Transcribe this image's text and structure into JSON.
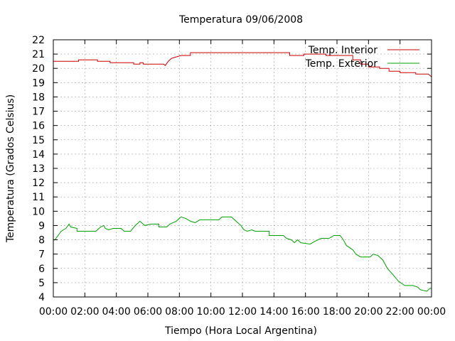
{
  "chart_data": {
    "type": "line",
    "title": "Temperatura 09/06/2008",
    "xlabel": "Tiempo (Hora Local Argentina)",
    "ylabel": "Temperatura (Grados Celsius)",
    "x_unit": "hours",
    "xlim": [
      0,
      24
    ],
    "ylim": [
      4,
      22
    ],
    "grid": true,
    "legend": "top-right",
    "x_ticks": [
      {
        "value": 0,
        "label": "00:00"
      },
      {
        "value": 2,
        "label": "02:00"
      },
      {
        "value": 4,
        "label": "04:00"
      },
      {
        "value": 6,
        "label": "06:00"
      },
      {
        "value": 8,
        "label": "08:00"
      },
      {
        "value": 10,
        "label": "10:00"
      },
      {
        "value": 12,
        "label": "12:00"
      },
      {
        "value": 14,
        "label": "14:00"
      },
      {
        "value": 16,
        "label": "16:00"
      },
      {
        "value": 18,
        "label": "18:00"
      },
      {
        "value": 20,
        "label": "20:00"
      },
      {
        "value": 22,
        "label": "22:00"
      },
      {
        "value": 24,
        "label": "00:00"
      }
    ],
    "y_ticks": [
      {
        "value": 4,
        "label": "4"
      },
      {
        "value": 5,
        "label": "5"
      },
      {
        "value": 6,
        "label": "6"
      },
      {
        "value": 7,
        "label": "7"
      },
      {
        "value": 8,
        "label": "8"
      },
      {
        "value": 9,
        "label": "9"
      },
      {
        "value": 10,
        "label": "10"
      },
      {
        "value": 11,
        "label": "11"
      },
      {
        "value": 12,
        "label": "12"
      },
      {
        "value": 13,
        "label": "13"
      },
      {
        "value": 14,
        "label": "14"
      },
      {
        "value": 15,
        "label": "15"
      },
      {
        "value": 16,
        "label": "16"
      },
      {
        "value": 17,
        "label": "17"
      },
      {
        "value": 18,
        "label": "18"
      },
      {
        "value": 19,
        "label": "19"
      },
      {
        "value": 20,
        "label": "20"
      },
      {
        "value": 21,
        "label": "21"
      },
      {
        "value": 22,
        "label": "22"
      }
    ],
    "series": [
      {
        "name": "Temp. Interior",
        "color": "#cc0000",
        "points": [
          [
            0,
            20.5
          ],
          [
            1.6,
            20.5
          ],
          [
            1.6,
            20.6
          ],
          [
            2.8,
            20.6
          ],
          [
            2.8,
            20.5
          ],
          [
            3.6,
            20.5
          ],
          [
            3.6,
            20.4
          ],
          [
            5.1,
            20.4
          ],
          [
            5.1,
            20.3
          ],
          [
            5.5,
            20.3
          ],
          [
            5.5,
            20.4
          ],
          [
            5.7,
            20.4
          ],
          [
            5.7,
            20.3
          ],
          [
            7.0,
            20.3
          ],
          [
            7.1,
            20.2
          ],
          [
            7.3,
            20.5
          ],
          [
            7.5,
            20.7
          ],
          [
            7.8,
            20.8
          ],
          [
            8.1,
            20.9
          ],
          [
            8.7,
            20.9
          ],
          [
            8.7,
            21.1
          ],
          [
            15.0,
            21.1
          ],
          [
            15.0,
            20.9
          ],
          [
            15.9,
            20.9
          ],
          [
            15.9,
            21.0
          ],
          [
            17.3,
            21.0
          ],
          [
            17.3,
            20.9
          ],
          [
            19.0,
            20.9
          ],
          [
            19.0,
            20.6
          ],
          [
            19.5,
            20.6
          ],
          [
            19.5,
            20.3
          ],
          [
            20.0,
            20.3
          ],
          [
            20.0,
            20.1
          ],
          [
            20.7,
            20.1
          ],
          [
            20.7,
            20.0
          ],
          [
            21.3,
            20.0
          ],
          [
            21.3,
            19.8
          ],
          [
            22.0,
            19.8
          ],
          [
            22.0,
            19.7
          ],
          [
            23.0,
            19.7
          ],
          [
            23.0,
            19.6
          ],
          [
            23.8,
            19.6
          ],
          [
            24.0,
            19.4
          ]
        ]
      },
      {
        "name": "Temp. Exterior",
        "color": "#00a000",
        "points": [
          [
            0,
            8.0
          ],
          [
            0.1,
            8.0
          ],
          [
            0.3,
            8.3
          ],
          [
            0.5,
            8.6
          ],
          [
            0.8,
            8.8
          ],
          [
            1.0,
            9.1
          ],
          [
            1.1,
            8.9
          ],
          [
            1.5,
            8.8
          ],
          [
            1.5,
            8.6
          ],
          [
            2.7,
            8.6
          ],
          [
            3.0,
            8.9
          ],
          [
            3.2,
            9.0
          ],
          [
            3.3,
            8.8
          ],
          [
            3.5,
            8.7
          ],
          [
            3.8,
            8.8
          ],
          [
            4.3,
            8.8
          ],
          [
            4.5,
            8.6
          ],
          [
            4.9,
            8.6
          ],
          [
            5.2,
            9.0
          ],
          [
            5.5,
            9.3
          ],
          [
            5.8,
            9.0
          ],
          [
            6.2,
            9.1
          ],
          [
            6.7,
            9.1
          ],
          [
            6.7,
            8.9
          ],
          [
            7.2,
            8.9
          ],
          [
            7.4,
            9.1
          ],
          [
            7.8,
            9.3
          ],
          [
            8.1,
            9.6
          ],
          [
            8.4,
            9.5
          ],
          [
            8.7,
            9.3
          ],
          [
            9.0,
            9.2
          ],
          [
            9.3,
            9.4
          ],
          [
            10.5,
            9.4
          ],
          [
            10.7,
            9.6
          ],
          [
            11.3,
            9.6
          ],
          [
            11.6,
            9.3
          ],
          [
            11.9,
            9.0
          ],
          [
            12.1,
            8.7
          ],
          [
            12.3,
            8.6
          ],
          [
            12.6,
            8.7
          ],
          [
            12.8,
            8.6
          ],
          [
            13.7,
            8.6
          ],
          [
            13.7,
            8.3
          ],
          [
            14.6,
            8.3
          ],
          [
            14.8,
            8.1
          ],
          [
            15.1,
            8.0
          ],
          [
            15.3,
            7.8
          ],
          [
            15.5,
            8.0
          ],
          [
            15.7,
            7.8
          ],
          [
            16.3,
            7.7
          ],
          [
            16.6,
            7.9
          ],
          [
            17.0,
            8.1
          ],
          [
            17.5,
            8.1
          ],
          [
            17.8,
            8.3
          ],
          [
            18.2,
            8.3
          ],
          [
            18.4,
            8.0
          ],
          [
            18.6,
            7.6
          ],
          [
            19.0,
            7.3
          ],
          [
            19.2,
            7.0
          ],
          [
            19.5,
            6.8
          ],
          [
            20.1,
            6.8
          ],
          [
            20.3,
            7.0
          ],
          [
            20.6,
            6.9
          ],
          [
            20.9,
            6.6
          ],
          [
            21.2,
            6.0
          ],
          [
            21.6,
            5.5
          ],
          [
            21.9,
            5.1
          ],
          [
            22.3,
            4.8
          ],
          [
            22.8,
            4.8
          ],
          [
            23.1,
            4.7
          ],
          [
            23.3,
            4.5
          ],
          [
            23.7,
            4.4
          ],
          [
            23.9,
            4.6
          ],
          [
            24.0,
            4.6
          ]
        ]
      }
    ]
  }
}
